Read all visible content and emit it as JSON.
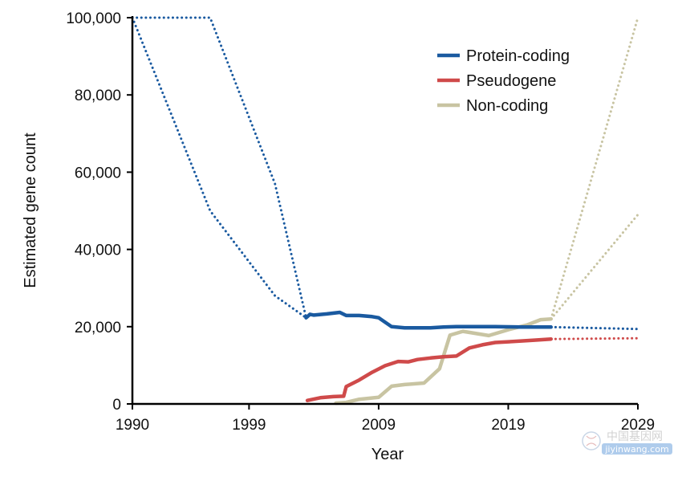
{
  "chart_data": {
    "type": "line",
    "xlabel": "Year",
    "ylabel": "Estimated gene count",
    "xlim": [
      1990,
      2029
    ],
    "ylim": [
      0,
      100000
    ],
    "xticks": [
      {
        "value": 1990,
        "label": "1990"
      },
      {
        "value": 1999,
        "label": "1999"
      },
      {
        "value": 2009,
        "label": "2009"
      },
      {
        "value": 2019,
        "label": "2019"
      },
      {
        "value": 2029,
        "label": "2029"
      }
    ],
    "yticks": [
      {
        "value": 0,
        "label": "0"
      },
      {
        "value": 20000,
        "label": "20,000"
      },
      {
        "value": 40000,
        "label": "40,000"
      },
      {
        "value": 60000,
        "label": "60,000"
      },
      {
        "value": 80000,
        "label": "80,000"
      },
      {
        "value": 100000,
        "label": "100,000"
      }
    ],
    "legend_position": "top-right",
    "grid": false,
    "series": [
      {
        "name": "Protein-coding",
        "color": "#1a5aa0",
        "observed": [
          [
            2003.4,
            22300
          ],
          [
            2003.7,
            23200
          ],
          [
            2004,
            23000
          ],
          [
            2005,
            23300
          ],
          [
            2006,
            23700
          ],
          [
            2006.5,
            22900
          ],
          [
            2007.5,
            22900
          ],
          [
            2008.5,
            22600
          ],
          [
            2009,
            22300
          ],
          [
            2010,
            20000
          ],
          [
            2011,
            19700
          ],
          [
            2012,
            19700
          ],
          [
            2013,
            19700
          ],
          [
            2014,
            19900
          ],
          [
            2015,
            20000
          ],
          [
            2016,
            20000
          ],
          [
            2017,
            20000
          ],
          [
            2018,
            20000
          ],
          [
            2019,
            19950
          ],
          [
            2020,
            19900
          ],
          [
            2021,
            19900
          ],
          [
            2022.3,
            19900
          ]
        ],
        "past_estimates_a": [
          [
            1990,
            100000
          ],
          [
            1996,
            100000
          ],
          [
            2001,
            57000
          ],
          [
            2003.4,
            22300
          ]
        ],
        "past_estimates_b": [
          [
            1990,
            100000
          ],
          [
            1996,
            50000
          ],
          [
            2001,
            28000
          ],
          [
            2003.4,
            22300
          ]
        ],
        "projection": [
          [
            2022.3,
            19900
          ],
          [
            2029,
            19400
          ]
        ]
      },
      {
        "name": "Pseudogene",
        "color": "#cf4a4a",
        "observed": [
          [
            2003.5,
            900
          ],
          [
            2004.5,
            1600
          ],
          [
            2005.5,
            1900
          ],
          [
            2006.3,
            2000
          ],
          [
            2006.5,
            4500
          ],
          [
            2007.5,
            6200
          ],
          [
            2008.5,
            8200
          ],
          [
            2009.5,
            9900
          ],
          [
            2010.5,
            11000
          ],
          [
            2011.3,
            10900
          ],
          [
            2012,
            11500
          ],
          [
            2013,
            11900
          ],
          [
            2014,
            12200
          ],
          [
            2015,
            12400
          ],
          [
            2016,
            14500
          ],
          [
            2017,
            15300
          ],
          [
            2018,
            15900
          ],
          [
            2019,
            16100
          ],
          [
            2020,
            16300
          ],
          [
            2021,
            16500
          ],
          [
            2022.3,
            16800
          ]
        ],
        "projection": [
          [
            2022.3,
            16800
          ],
          [
            2029,
            17000
          ]
        ]
      },
      {
        "name": "Non-coding",
        "color": "#c8c4a2",
        "observed": [
          [
            2005.7,
            200
          ],
          [
            2006.5,
            400
          ],
          [
            2007.5,
            1200
          ],
          [
            2009,
            1700
          ],
          [
            2010,
            4600
          ],
          [
            2011,
            5000
          ],
          [
            2012.5,
            5400
          ],
          [
            2013.7,
            9100
          ],
          [
            2014.5,
            17800
          ],
          [
            2015.5,
            18800
          ],
          [
            2017.5,
            17700
          ],
          [
            2019,
            19200
          ],
          [
            2020.5,
            20500
          ],
          [
            2021.5,
            21800
          ],
          [
            2022.3,
            22000
          ]
        ],
        "projection_a": [
          [
            2022.3,
            22000
          ],
          [
            2029,
            100000
          ]
        ],
        "projection_b": [
          [
            2022.3,
            22000
          ],
          [
            2029,
            49000
          ]
        ]
      }
    ]
  },
  "watermark": {
    "text": "中国基因网",
    "url": "jiyinwang.com"
  }
}
